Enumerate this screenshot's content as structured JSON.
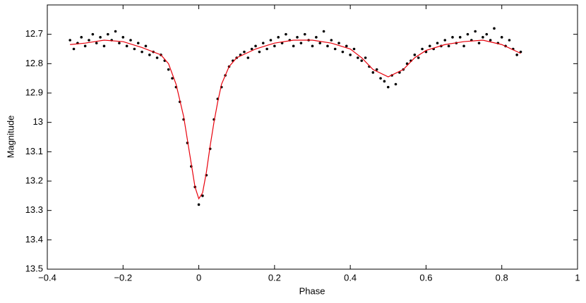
{
  "chart_data": {
    "type": "scatter",
    "x_label": "Phase",
    "y_label": "Magnitude",
    "xlim": [
      -0.4,
      1
    ],
    "xticks": [
      {
        "value": -0.4,
        "label": "−0.4"
      },
      {
        "value": -0.2,
        "label": "−0.2"
      },
      0,
      0.2,
      0.4,
      0.6,
      0.8,
      1
    ],
    "ylim": [
      13.5,
      12.6
    ],
    "yticks": [
      12.7,
      12.8,
      12.9,
      13,
      13.1,
      13.2,
      13.3,
      13.4,
      13.5
    ],
    "grid": false,
    "series": [
      {
        "type": "scatter",
        "color": "#000000",
        "x": [
          -0.34,
          -0.33,
          -0.32,
          -0.31,
          -0.3,
          -0.29,
          -0.28,
          -0.27,
          -0.26,
          -0.25,
          -0.24,
          -0.23,
          -0.22,
          -0.21,
          -0.2,
          -0.19,
          -0.18,
          -0.17,
          -0.16,
          -0.15,
          -0.14,
          -0.13,
          -0.12,
          -0.11,
          -0.1,
          -0.09,
          -0.08,
          -0.07,
          -0.06,
          -0.05,
          -0.04,
          -0.03,
          -0.02,
          -0.01,
          0.0,
          0.01,
          0.02,
          0.03,
          0.04,
          0.05,
          0.06,
          0.07,
          0.08,
          0.09,
          0.1,
          0.11,
          0.12,
          0.13,
          0.14,
          0.15,
          0.16,
          0.17,
          0.18,
          0.19,
          0.2,
          0.21,
          0.22,
          0.23,
          0.24,
          0.25,
          0.26,
          0.27,
          0.28,
          0.29,
          0.3,
          0.31,
          0.32,
          0.33,
          0.34,
          0.35,
          0.36,
          0.37,
          0.38,
          0.39,
          0.4,
          0.41,
          0.42,
          0.43,
          0.44,
          0.45,
          0.46,
          0.47,
          0.48,
          0.49,
          0.5,
          0.51,
          0.52,
          0.53,
          0.54,
          0.55,
          0.56,
          0.57,
          0.58,
          0.59,
          0.6,
          0.61,
          0.62,
          0.63,
          0.64,
          0.65,
          0.66,
          0.67,
          0.68,
          0.69,
          0.7,
          0.71,
          0.72,
          0.73,
          0.74,
          0.75,
          0.76,
          0.77,
          0.78,
          0.79,
          0.8,
          0.81,
          0.82,
          0.83,
          0.84,
          0.85
        ],
        "values": [
          12.72,
          12.75,
          12.73,
          12.71,
          12.74,
          12.72,
          12.7,
          12.73,
          12.71,
          12.74,
          12.7,
          12.72,
          12.69,
          12.73,
          12.71,
          12.74,
          12.72,
          12.75,
          12.73,
          12.76,
          12.74,
          12.77,
          12.76,
          12.78,
          12.77,
          12.79,
          12.82,
          12.85,
          12.88,
          12.93,
          12.99,
          13.07,
          13.15,
          13.22,
          13.28,
          13.25,
          13.18,
          13.09,
          12.99,
          12.92,
          12.88,
          12.84,
          12.81,
          12.79,
          12.78,
          12.77,
          12.76,
          12.78,
          12.75,
          12.74,
          12.76,
          12.73,
          12.75,
          12.72,
          12.74,
          12.71,
          12.73,
          12.7,
          12.72,
          12.74,
          12.71,
          12.73,
          12.7,
          12.72,
          12.74,
          12.71,
          12.73,
          12.69,
          12.74,
          12.72,
          12.75,
          12.73,
          12.76,
          12.74,
          12.77,
          12.75,
          12.78,
          12.79,
          12.78,
          12.81,
          12.83,
          12.82,
          12.85,
          12.86,
          12.88,
          12.84,
          12.87,
          12.83,
          12.82,
          12.8,
          12.79,
          12.77,
          12.78,
          12.75,
          12.76,
          12.74,
          12.75,
          12.73,
          12.74,
          12.72,
          12.74,
          12.71,
          12.73,
          12.71,
          12.74,
          12.7,
          12.72,
          12.69,
          12.73,
          12.71,
          12.7,
          12.72,
          12.68,
          12.73,
          12.71,
          12.74,
          12.72,
          12.75,
          12.77,
          12.76
        ]
      },
      {
        "type": "line",
        "color": "#e8000b",
        "x": [
          -0.34,
          -0.3,
          -0.25,
          -0.2,
          -0.15,
          -0.1,
          -0.08,
          -0.06,
          -0.04,
          -0.03,
          -0.02,
          -0.01,
          0,
          0.01,
          0.02,
          0.03,
          0.04,
          0.05,
          0.06,
          0.08,
          0.1,
          0.15,
          0.2,
          0.25,
          0.3,
          0.35,
          0.4,
          0.43,
          0.46,
          0.5,
          0.54,
          0.57,
          0.6,
          0.65,
          0.7,
          0.75,
          0.8,
          0.85
        ],
        "values": [
          12.735,
          12.73,
          12.72,
          12.725,
          12.745,
          12.77,
          12.8,
          12.87,
          12.98,
          13.06,
          13.14,
          13.22,
          13.26,
          13.24,
          13.17,
          13.08,
          13.0,
          12.93,
          12.87,
          12.81,
          12.78,
          12.75,
          12.73,
          12.72,
          12.72,
          12.73,
          12.75,
          12.78,
          12.82,
          12.845,
          12.82,
          12.78,
          12.755,
          12.735,
          12.725,
          12.72,
          12.735,
          12.765
        ]
      }
    ]
  }
}
